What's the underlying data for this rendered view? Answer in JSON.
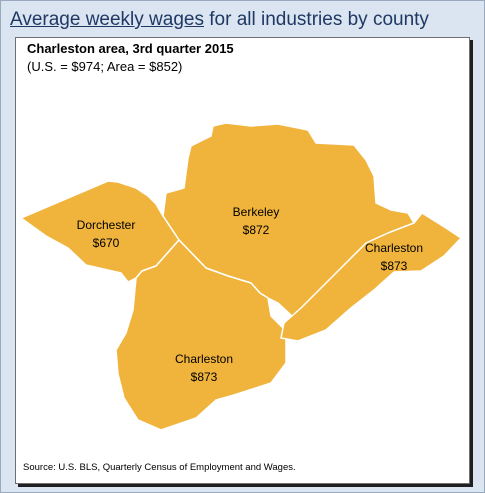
{
  "header": {
    "title_underlined": "Average weekly wages",
    "title_rest": " for all industries by county"
  },
  "map": {
    "subtitle": "Charleston area, 3rd quarter 2015",
    "note": "(U.S. = $974; Area = $852)",
    "fill_color": "#f0b43c",
    "counties": [
      {
        "name": "Dorchester",
        "wage": "$670"
      },
      {
        "name": "Berkeley",
        "wage": "$872"
      },
      {
        "name": "Charleston",
        "wage": "$873"
      },
      {
        "name": "Charleston",
        "wage": "$873"
      }
    ]
  },
  "footer": {
    "source": "Source: U.S. BLS, Quarterly Census of Employment and Wages."
  }
}
